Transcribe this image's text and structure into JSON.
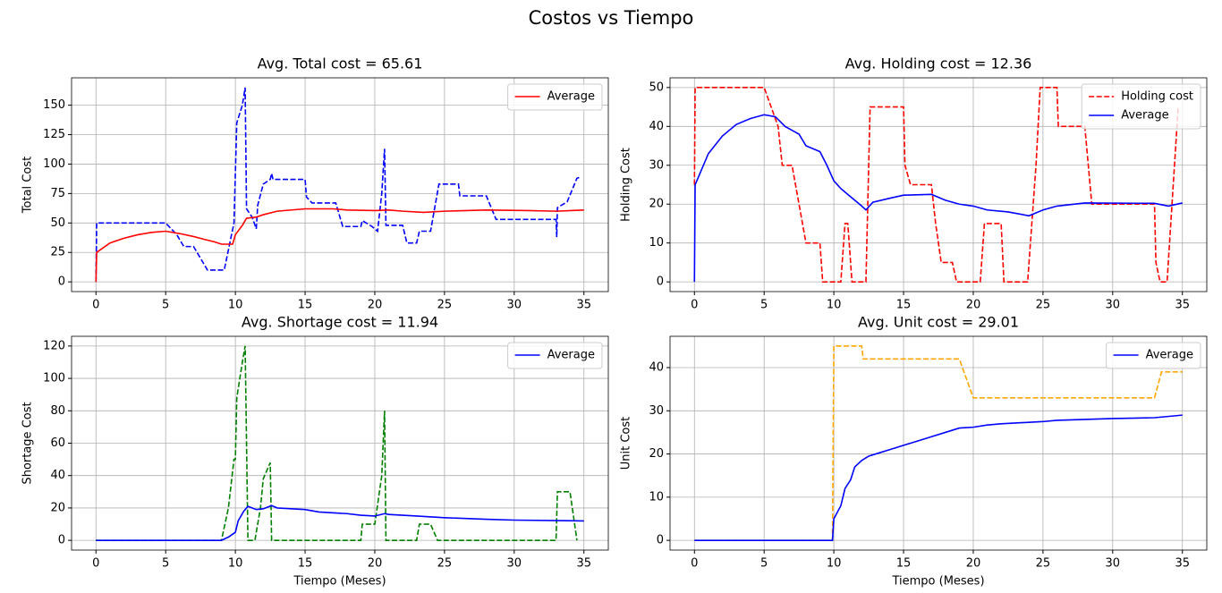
{
  "title": "Costos vs Tiempo",
  "chart_data": [
    {
      "type": "line",
      "title": "Avg. Total cost = 65.61",
      "y_label": "Total Cost",
      "xlim": [
        -1.75,
        36.75
      ],
      "ylim": [
        -8.25,
        173.25
      ],
      "xticks": [
        0,
        5,
        10,
        15,
        20,
        25,
        30,
        35
      ],
      "yticks": [
        0,
        25,
        50,
        75,
        100,
        125,
        150
      ],
      "grid": true,
      "legend": "upper right",
      "series": [
        {
          "color": "#0000ff",
          "style": "dashed",
          "x": [
            0,
            0.05,
            5,
            5.8,
            6.3,
            7,
            7.5,
            8,
            9.2,
            9.9,
            10.1,
            10.5,
            10.7,
            10.8,
            11.2,
            11.5,
            11.6,
            12,
            12.5,
            12.6,
            12.7,
            15,
            15.1,
            15.5,
            17.2,
            17.7,
            19,
            19.1,
            19.8,
            20.2,
            20.5,
            20.7,
            20.8,
            22,
            22.3,
            23,
            23.2,
            24,
            24.6,
            26,
            26.1,
            28,
            28.7,
            33,
            33.05,
            33.1,
            33.8,
            34.5,
            34.8
          ],
          "values": [
            0,
            50,
            50,
            40,
            30,
            30,
            20,
            10,
            10,
            50,
            135,
            150,
            165,
            62,
            55,
            45,
            65,
            83,
            87,
            92,
            87,
            87,
            72,
            67,
            67,
            47,
            47,
            52,
            47,
            43,
            75,
            113,
            48,
            48,
            33,
            33,
            43,
            43,
            83,
            83,
            73,
            73,
            53,
            53,
            38,
            63,
            68,
            88,
            89
          ]
        },
        {
          "name": "Average",
          "color": "#ff0000",
          "style": "solid",
          "x": [
            0,
            0.05,
            1,
            2,
            3,
            4,
            5,
            6,
            7,
            7.8,
            8.5,
            9,
            9.8,
            10,
            10.5,
            10.8,
            11.5,
            12,
            13,
            15,
            17,
            18,
            20,
            21,
            22,
            23.5,
            25,
            28,
            31,
            33,
            35
          ],
          "values": [
            0,
            25,
            33,
            37,
            40,
            42,
            43,
            41,
            38.5,
            36,
            34,
            32,
            32,
            40,
            48,
            54,
            55,
            57,
            60,
            62,
            62,
            61,
            60.5,
            61,
            60,
            59,
            60,
            61,
            60.5,
            60,
            61
          ]
        }
      ]
    },
    {
      "type": "line",
      "title": "Avg. Holding cost = 12.36",
      "y_label": "Holding Cost",
      "xlim": [
        -1.75,
        36.75
      ],
      "ylim": [
        -2.5,
        52.5
      ],
      "xticks": [
        0,
        5,
        10,
        15,
        20,
        25,
        30,
        35
      ],
      "yticks": [
        0,
        10,
        20,
        30,
        40,
        50
      ],
      "grid": true,
      "legend": "upper right",
      "series": [
        {
          "name": "Holding cost",
          "color": "#ff0000",
          "style": "dashed",
          "x": [
            0,
            0.05,
            5,
            5.5,
            6,
            6.3,
            7,
            7.5,
            8,
            9,
            9.2,
            10.5,
            10.8,
            11,
            11.3,
            12.3,
            12.6,
            15,
            15.1,
            15.5,
            17,
            17.3,
            17.7,
            18.5,
            18.8,
            20.5,
            20.8,
            22,
            22.2,
            23.9,
            24.5,
            24.8,
            26,
            26.1,
            28,
            28.5,
            33,
            33.1,
            33.4,
            33.9,
            34.7
          ],
          "values": [
            25,
            50,
            50,
            45,
            40,
            30,
            30,
            20,
            10,
            10,
            0,
            0,
            15,
            15,
            0,
            0,
            45,
            45,
            30,
            25,
            25,
            15,
            5,
            5,
            0,
            0,
            15,
            15,
            0,
            0,
            30,
            50,
            50,
            40,
            40,
            20,
            20,
            5,
            0,
            0,
            45
          ]
        },
        {
          "name": "Average",
          "color": "#0000ff",
          "style": "solid",
          "x": [
            0,
            0.05,
            1,
            2,
            3,
            4,
            5,
            5.8,
            6.5,
            7.5,
            8,
            9,
            9.5,
            10,
            10.5,
            11,
            11.5,
            12,
            12.3,
            12.8,
            14,
            15,
            17,
            18,
            19,
            20,
            21,
            22.5,
            24,
            25,
            26,
            28,
            33,
            34,
            35
          ],
          "values": [
            0,
            25,
            33,
            37.5,
            40.5,
            42,
            43,
            42.5,
            40,
            38,
            35,
            33.5,
            30,
            26,
            24,
            22.5,
            21,
            19.5,
            18.5,
            20.5,
            21.5,
            22.3,
            22.5,
            21,
            20,
            19.5,
            18.5,
            18,
            17,
            18.5,
            19.5,
            20.3,
            20.2,
            19.5,
            20.3
          ]
        }
      ]
    },
    {
      "type": "line",
      "title": "Avg. Shortage cost = 11.94",
      "y_label": "Shortage Cost",
      "x_label": "Tiempo (Meses)",
      "xlim": [
        -1.75,
        36.75
      ],
      "ylim": [
        -6,
        126
      ],
      "xticks": [
        0,
        5,
        10,
        15,
        20,
        25,
        30,
        35
      ],
      "yticks": [
        0,
        20,
        40,
        60,
        80,
        100,
        120
      ],
      "grid": true,
      "legend": "upper right",
      "series": [
        {
          "color": "#008000",
          "style": "dashed",
          "x": [
            0,
            9,
            9.5,
            9.9,
            10,
            10.1,
            10.5,
            10.7,
            10.9,
            11.4,
            11.8,
            12,
            12.5,
            12.6,
            19,
            19.1,
            20,
            20.5,
            20.7,
            20.8,
            23,
            23.2,
            24,
            24.5,
            33,
            33.1,
            34,
            34.5
          ],
          "values": [
            0,
            0,
            20,
            50,
            50,
            88,
            110,
            120,
            0,
            0,
            20,
            38,
            48,
            0,
            0,
            10,
            10,
            40,
            80,
            0,
            0,
            10,
            10,
            0,
            0,
            30,
            30,
            0
          ]
        },
        {
          "name": "Average",
          "color": "#0000ff",
          "style": "solid",
          "x": [
            0,
            9,
            9.5,
            10,
            10.2,
            10.6,
            10.9,
            11.5,
            12,
            12.6,
            13,
            15,
            16,
            18,
            19,
            20,
            20.7,
            21,
            23,
            25,
            28,
            30,
            35
          ],
          "values": [
            0,
            0,
            2,
            5,
            12,
            18,
            21,
            19,
            19.5,
            21.5,
            20,
            19,
            17.5,
            16.5,
            15.5,
            15,
            16.5,
            16,
            15,
            14,
            13,
            12.5,
            12
          ]
        }
      ]
    },
    {
      "type": "line",
      "title": "Avg. Unit cost = 29.01",
      "y_label": "Unit Cost",
      "x_label": "Tiempo (Meses)",
      "xlim": [
        -1.75,
        36.75
      ],
      "ylim": [
        -2.25,
        47.25
      ],
      "xticks": [
        0,
        5,
        10,
        15,
        20,
        25,
        30,
        35
      ],
      "yticks": [
        0,
        10,
        20,
        30,
        40
      ],
      "grid": true,
      "legend": "upper right",
      "series": [
        {
          "color": "#ffa500",
          "style": "dashed",
          "x": [
            0,
            9.9,
            10,
            12,
            12.1,
            19,
            20,
            33,
            33.5,
            35
          ],
          "values": [
            0,
            0,
            45,
            45,
            42,
            42,
            33,
            33,
            39,
            39
          ]
        },
        {
          "name": "Average",
          "color": "#0000ff",
          "style": "solid",
          "x": [
            0,
            9.9,
            10,
            10.5,
            10.8,
            11.2,
            11.5,
            12,
            12.5,
            13,
            14,
            15,
            16,
            17,
            18,
            19,
            20,
            21,
            22,
            25,
            26,
            30,
            33,
            35
          ],
          "values": [
            0,
            0,
            5,
            8,
            12,
            14,
            17,
            18.5,
            19.5,
            20,
            21,
            22,
            23,
            24,
            25,
            26,
            26.2,
            26.7,
            27,
            27.5,
            27.8,
            28.2,
            28.4,
            29
          ]
        }
      ]
    }
  ]
}
